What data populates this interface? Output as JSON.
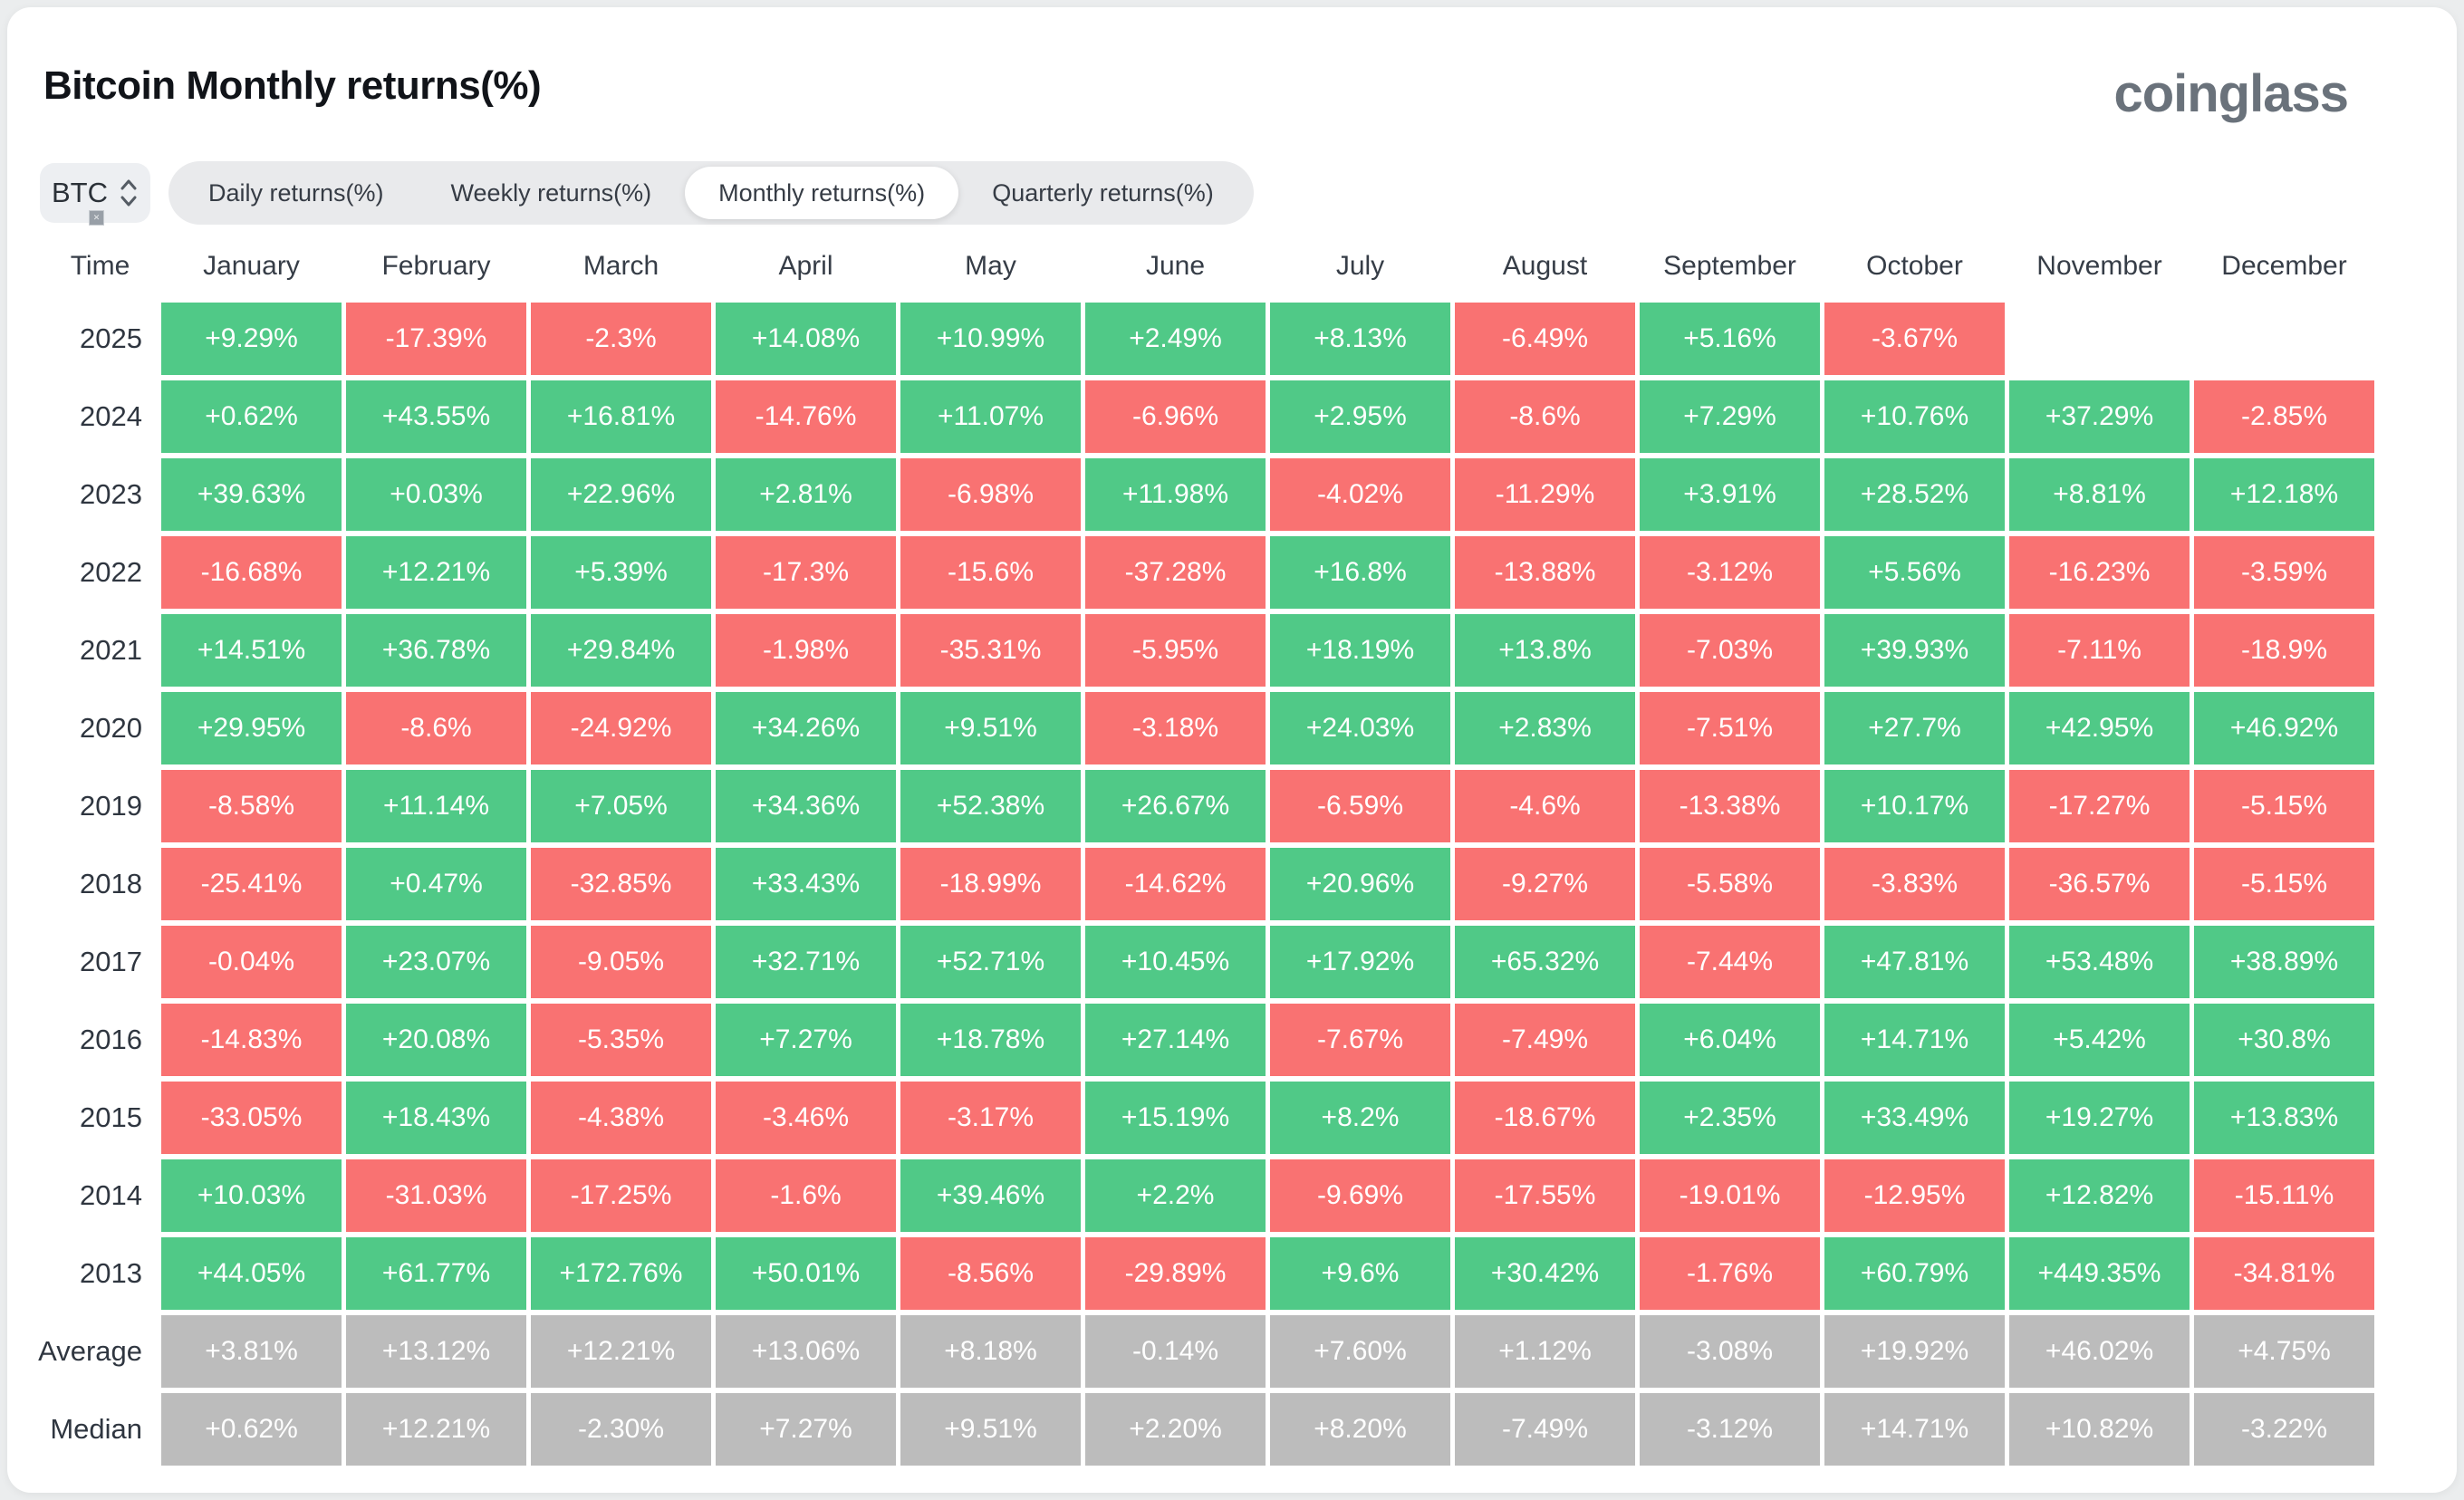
{
  "page": {
    "title": "Bitcoin Monthly returns(%)",
    "logo": "coinglass"
  },
  "controls": {
    "coin_selector": {
      "value": "BTC"
    },
    "tabs": [
      {
        "label": "Daily returns(%)",
        "active": false
      },
      {
        "label": "Weekly returns(%)",
        "active": false
      },
      {
        "label": "Monthly returns(%)",
        "active": true
      },
      {
        "label": "Quarterly returns(%)",
        "active": false
      }
    ]
  },
  "colors": {
    "positive": "#50c987",
    "negative": "#f97272",
    "summary": "#bcbcbc"
  },
  "chart_data": {
    "type": "heatmap",
    "title": "Bitcoin Monthly returns(%)",
    "columns": [
      "Time",
      "January",
      "February",
      "March",
      "April",
      "May",
      "June",
      "July",
      "August",
      "September",
      "October",
      "November",
      "December"
    ],
    "rows": [
      {
        "label": "2025",
        "kind": "year",
        "values": [
          "+9.29%",
          "-17.39%",
          "-2.3%",
          "+14.08%",
          "+10.99%",
          "+2.49%",
          "+8.13%",
          "-6.49%",
          "+5.16%",
          "-3.67%",
          null,
          null
        ]
      },
      {
        "label": "2024",
        "kind": "year",
        "values": [
          "+0.62%",
          "+43.55%",
          "+16.81%",
          "-14.76%",
          "+11.07%",
          "-6.96%",
          "+2.95%",
          "-8.6%",
          "+7.29%",
          "+10.76%",
          "+37.29%",
          "-2.85%"
        ]
      },
      {
        "label": "2023",
        "kind": "year",
        "values": [
          "+39.63%",
          "+0.03%",
          "+22.96%",
          "+2.81%",
          "-6.98%",
          "+11.98%",
          "-4.02%",
          "-11.29%",
          "+3.91%",
          "+28.52%",
          "+8.81%",
          "+12.18%"
        ]
      },
      {
        "label": "2022",
        "kind": "year",
        "values": [
          "-16.68%",
          "+12.21%",
          "+5.39%",
          "-17.3%",
          "-15.6%",
          "-37.28%",
          "+16.8%",
          "-13.88%",
          "-3.12%",
          "+5.56%",
          "-16.23%",
          "-3.59%"
        ]
      },
      {
        "label": "2021",
        "kind": "year",
        "values": [
          "+14.51%",
          "+36.78%",
          "+29.84%",
          "-1.98%",
          "-35.31%",
          "-5.95%",
          "+18.19%",
          "+13.8%",
          "-7.03%",
          "+39.93%",
          "-7.11%",
          "-18.9%"
        ]
      },
      {
        "label": "2020",
        "kind": "year",
        "values": [
          "+29.95%",
          "-8.6%",
          "-24.92%",
          "+34.26%",
          "+9.51%",
          "-3.18%",
          "+24.03%",
          "+2.83%",
          "-7.51%",
          "+27.7%",
          "+42.95%",
          "+46.92%"
        ]
      },
      {
        "label": "2019",
        "kind": "year",
        "values": [
          "-8.58%",
          "+11.14%",
          "+7.05%",
          "+34.36%",
          "+52.38%",
          "+26.67%",
          "-6.59%",
          "-4.6%",
          "-13.38%",
          "+10.17%",
          "-17.27%",
          "-5.15%"
        ]
      },
      {
        "label": "2018",
        "kind": "year",
        "values": [
          "-25.41%",
          "+0.47%",
          "-32.85%",
          "+33.43%",
          "-18.99%",
          "-14.62%",
          "+20.96%",
          "-9.27%",
          "-5.58%",
          "-3.83%",
          "-36.57%",
          "-5.15%"
        ]
      },
      {
        "label": "2017",
        "kind": "year",
        "values": [
          "-0.04%",
          "+23.07%",
          "-9.05%",
          "+32.71%",
          "+52.71%",
          "+10.45%",
          "+17.92%",
          "+65.32%",
          "-7.44%",
          "+47.81%",
          "+53.48%",
          "+38.89%"
        ]
      },
      {
        "label": "2016",
        "kind": "year",
        "values": [
          "-14.83%",
          "+20.08%",
          "-5.35%",
          "+7.27%",
          "+18.78%",
          "+27.14%",
          "-7.67%",
          "-7.49%",
          "+6.04%",
          "+14.71%",
          "+5.42%",
          "+30.8%"
        ]
      },
      {
        "label": "2015",
        "kind": "year",
        "values": [
          "-33.05%",
          "+18.43%",
          "-4.38%",
          "-3.46%",
          "-3.17%",
          "+15.19%",
          "+8.2%",
          "-18.67%",
          "+2.35%",
          "+33.49%",
          "+19.27%",
          "+13.83%"
        ]
      },
      {
        "label": "2014",
        "kind": "year",
        "values": [
          "+10.03%",
          "-31.03%",
          "-17.25%",
          "-1.6%",
          "+39.46%",
          "+2.2%",
          "-9.69%",
          "-17.55%",
          "-19.01%",
          "-12.95%",
          "+12.82%",
          "-15.11%"
        ]
      },
      {
        "label": "2013",
        "kind": "year",
        "values": [
          "+44.05%",
          "+61.77%",
          "+172.76%",
          "+50.01%",
          "-8.56%",
          "-29.89%",
          "+9.6%",
          "+30.42%",
          "-1.76%",
          "+60.79%",
          "+449.35%",
          "-34.81%"
        ]
      },
      {
        "label": "Average",
        "kind": "summary",
        "values": [
          "+3.81%",
          "+13.12%",
          "+12.21%",
          "+13.06%",
          "+8.18%",
          "-0.14%",
          "+7.60%",
          "+1.12%",
          "-3.08%",
          "+19.92%",
          "+46.02%",
          "+4.75%"
        ]
      },
      {
        "label": "Median",
        "kind": "summary",
        "values": [
          "+0.62%",
          "+12.21%",
          "-2.30%",
          "+7.27%",
          "+9.51%",
          "+2.20%",
          "+8.20%",
          "-7.49%",
          "-3.12%",
          "+14.71%",
          "+10.82%",
          "-3.22%"
        ]
      }
    ]
  }
}
